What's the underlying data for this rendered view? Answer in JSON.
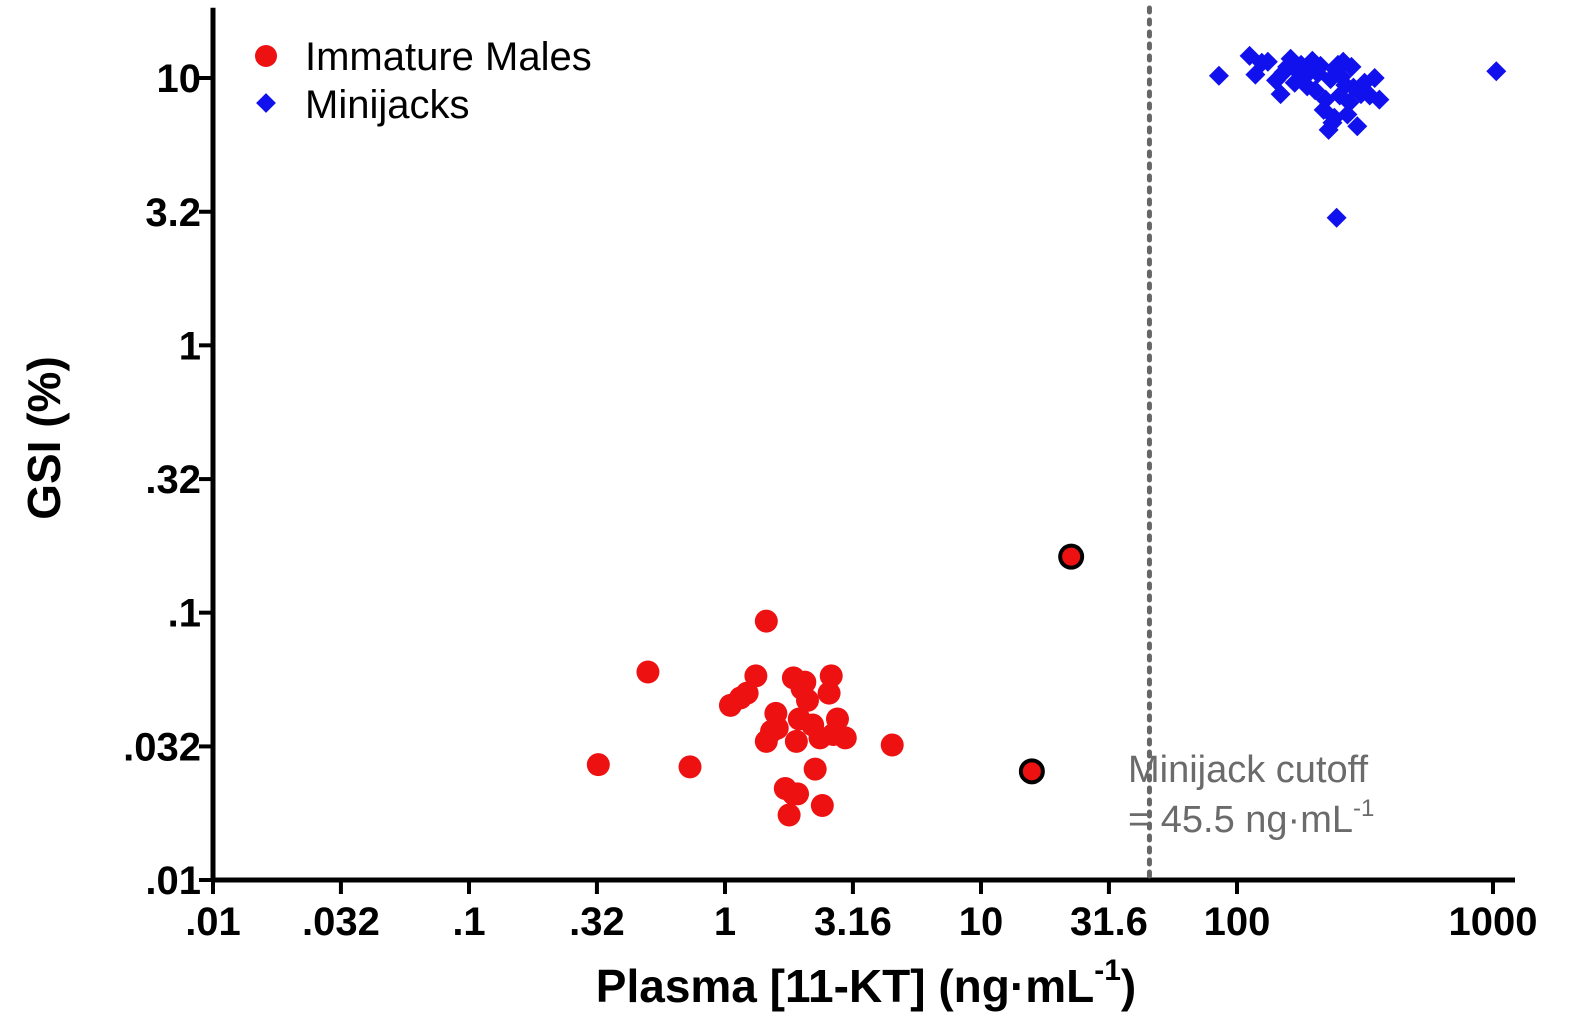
{
  "chart_data": {
    "type": "scatter",
    "xlabel_main": "Plasma [11-KT] (ng",
    "xlabel_dot": "·",
    "xlabel_unit": "mL",
    "xlabel_sup": "-1",
    "xlabel_end": ")",
    "ylabel": "GSI (%)",
    "x_scale": "log",
    "y_scale": "log",
    "xlim": [
      0.01,
      1000
    ],
    "ylim": [
      0.01,
      18
    ],
    "x_ticks": [
      0.01,
      0.0316,
      0.1,
      0.316,
      1,
      3.16,
      10,
      31.6,
      100,
      1000
    ],
    "x_tick_labels": [
      ".01",
      ".032",
      ".1",
      ".32",
      "1",
      "3.16",
      "10",
      "31.6",
      "100",
      "1000"
    ],
    "y_ticks": [
      0.01,
      0.0316,
      0.1,
      0.316,
      1,
      3.16,
      10
    ],
    "y_tick_labels": [
      ".01",
      ".032",
      ".1",
      ".32",
      "1",
      "3.2",
      "10"
    ],
    "grid": false,
    "legend_position": "top-left",
    "cutoff": {
      "x": 45.5,
      "line_color": "#666666",
      "label_line1": "Minijack cutoff",
      "label_line2_prefix": "= 45.5 ng",
      "label_line2_dot": "·",
      "label_line2_unit": "mL",
      "label_line2_sup": "-1"
    },
    "series": [
      {
        "name": "Immature Males",
        "marker": "circle",
        "color": "#ee1111",
        "points": [
          [
            0.32,
            0.027
          ],
          [
            0.5,
            0.06
          ],
          [
            0.73,
            0.0265
          ],
          [
            1.45,
            0.093
          ],
          [
            1.05,
            0.045
          ],
          [
            1.15,
            0.048
          ],
          [
            1.22,
            0.05
          ],
          [
            1.32,
            0.058
          ],
          [
            1.58,
            0.042
          ],
          [
            1.52,
            0.036
          ],
          [
            1.45,
            0.033
          ],
          [
            1.6,
            0.037
          ],
          [
            1.72,
            0.022
          ],
          [
            1.85,
            0.021
          ],
          [
            1.78,
            0.0175
          ],
          [
            1.9,
            0.033
          ],
          [
            1.85,
            0.057
          ],
          [
            2.05,
            0.055
          ],
          [
            2.0,
            0.052
          ],
          [
            2.1,
            0.047
          ],
          [
            1.95,
            0.04
          ],
          [
            2.2,
            0.038
          ],
          [
            2.35,
            0.034
          ],
          [
            2.25,
            0.026
          ],
          [
            2.6,
            0.058
          ],
          [
            2.55,
            0.05
          ],
          [
            2.65,
            0.035
          ],
          [
            2.75,
            0.04
          ],
          [
            2.95,
            0.034
          ],
          [
            2.4,
            0.019
          ],
          [
            4.5,
            0.032
          ],
          [
            1.92,
            0.021
          ]
        ]
      },
      {
        "name": "",
        "marker": "circle-outlined",
        "color": "#ee1111",
        "points": [
          [
            15.8,
            0.0255
          ],
          [
            22.5,
            0.162
          ]
        ]
      },
      {
        "name": "Minijacks",
        "marker": "diamond",
        "color": "#1111ee",
        "points": [
          [
            85,
            10.2
          ],
          [
            112,
            12.1
          ],
          [
            118,
            10.3
          ],
          [
            125,
            11.4
          ],
          [
            132,
            11.5
          ],
          [
            142,
            9.8
          ],
          [
            148,
            8.7
          ],
          [
            152,
            10.5
          ],
          [
            157,
            11.0
          ],
          [
            162,
            11.8
          ],
          [
            168,
            9.6
          ],
          [
            172,
            10.6
          ],
          [
            178,
            11.2
          ],
          [
            182,
            10.0
          ],
          [
            188,
            9.3
          ],
          [
            192,
            10.8
          ],
          [
            197,
            11.6
          ],
          [
            202,
            9.0
          ],
          [
            207,
            10.4
          ],
          [
            212,
            11.1
          ],
          [
            218,
            7.6
          ],
          [
            222,
            8.3
          ],
          [
            228,
            6.4
          ],
          [
            232,
            9.9
          ],
          [
            236,
            6.8
          ],
          [
            240,
            7.1
          ],
          [
            244,
            10.7
          ],
          [
            248,
            11.2
          ],
          [
            252,
            8.6
          ],
          [
            256,
            10.1
          ],
          [
            260,
            11.5
          ],
          [
            265,
            9.4
          ],
          [
            270,
            7.3
          ],
          [
            275,
            8.1
          ],
          [
            280,
            11.0
          ],
          [
            285,
            9.2
          ],
          [
            295,
            6.6
          ],
          [
            305,
            8.7
          ],
          [
            315,
            9.6
          ],
          [
            330,
            8.6
          ],
          [
            345,
            10.0
          ],
          [
            360,
            8.3
          ],
          [
            245,
            3.0
          ],
          [
            1030,
            10.6
          ]
        ]
      }
    ]
  }
}
